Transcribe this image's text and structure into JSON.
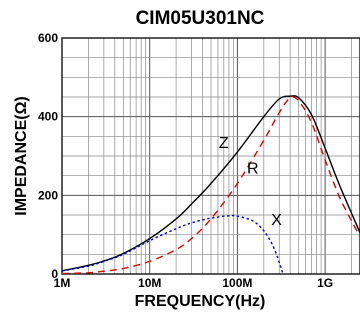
{
  "chart_data": {
    "type": "line",
    "title": "CIM05U301NC",
    "xlabel": "FREQUENCY(Hz)",
    "ylabel": "IMPEDANCE(Ω)",
    "x_scale": "log",
    "xlim": [
      1000000,
      2500000000
    ],
    "ylim": [
      0,
      600
    ],
    "x_ticks": [
      {
        "value": 1000000,
        "label": "1M"
      },
      {
        "value": 10000000,
        "label": "10M"
      },
      {
        "value": 100000000,
        "label": "100M"
      },
      {
        "value": 1000000000,
        "label": "1G"
      }
    ],
    "y_ticks": [
      {
        "value": 0,
        "label": "0"
      },
      {
        "value": 200,
        "label": "200"
      },
      {
        "value": 400,
        "label": "400"
      },
      {
        "value": 600,
        "label": "600"
      }
    ],
    "grid": true,
    "series": [
      {
        "name": "Z",
        "color": "#000000",
        "dash": "solid",
        "x": [
          1000000,
          2000000,
          3000000,
          5000000,
          10000000,
          20000000,
          30000000,
          50000000,
          100000000,
          200000000,
          300000000,
          400000000,
          500000000,
          700000000,
          1000000000,
          1500000000,
          2500000000
        ],
        "y": [
          8,
          22,
          33,
          52,
          90,
          140,
          178,
          230,
          310,
          400,
          445,
          452,
          448,
          405,
          320,
          220,
          105
        ]
      },
      {
        "name": "R",
        "color": "#e00000",
        "dash": "dashed",
        "x": [
          1000000,
          2000000,
          3000000,
          5000000,
          10000000,
          20000000,
          30000000,
          50000000,
          100000000,
          200000000,
          300000000,
          400000000,
          500000000,
          700000000,
          1000000000,
          1500000000,
          2500000000
        ],
        "y": [
          1,
          3,
          7,
          14,
          32,
          62,
          90,
          140,
          230,
          340,
          410,
          448,
          440,
          385,
          290,
          190,
          95
        ]
      },
      {
        "name": "X",
        "color": "#0000cc",
        "dash": "dotted",
        "x": [
          1000000,
          2000000,
          3000000,
          5000000,
          10000000,
          20000000,
          30000000,
          50000000,
          80000000,
          100000000,
          150000000,
          200000000,
          250000000,
          300000000,
          330000000
        ],
        "y": [
          8,
          20,
          32,
          50,
          85,
          115,
          130,
          142,
          148,
          147,
          135,
          110,
          75,
          30,
          0
        ]
      }
    ],
    "curve_labels": [
      {
        "text": "Z",
        "x": 70000000,
        "y": 320
      },
      {
        "text": "R",
        "x": 150000000,
        "y": 255
      },
      {
        "text": "X",
        "x": 280000000,
        "y": 125
      }
    ]
  }
}
